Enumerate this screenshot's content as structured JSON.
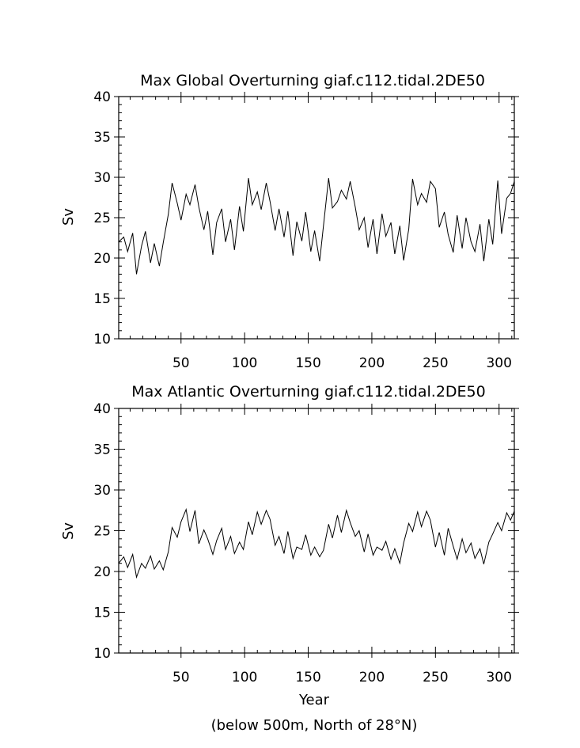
{
  "chart_data": [
    {
      "type": "line",
      "title": "Max Global Overturning giaf.c112.tidal.2DE50",
      "xlabel": "",
      "ylabel": "Sv",
      "xlim": [
        1,
        312
      ],
      "ylim": [
        10,
        40
      ],
      "xticks": [
        50,
        100,
        150,
        200,
        250,
        300
      ],
      "yticks": [
        10,
        15,
        20,
        25,
        30,
        35,
        40
      ],
      "grid": false,
      "x": [
        1,
        5,
        8,
        12,
        15,
        19,
        22,
        26,
        29,
        33,
        36,
        40,
        43,
        47,
        50,
        54,
        57,
        61,
        64,
        68,
        71,
        75,
        78,
        82,
        85,
        89,
        92,
        96,
        99,
        103,
        106,
        110,
        113,
        117,
        120,
        124,
        127,
        131,
        134,
        138,
        141,
        145,
        148,
        152,
        155,
        159,
        162,
        166,
        169,
        173,
        176,
        180,
        183,
        187,
        190,
        194,
        197,
        201,
        204,
        208,
        211,
        215,
        218,
        222,
        225,
        229,
        232,
        236,
        239,
        243,
        246,
        250,
        253,
        257,
        260,
        264,
        267,
        271,
        274,
        278,
        281,
        285,
        288,
        292,
        295,
        299,
        302,
        306,
        309,
        312
      ],
      "y": [
        22.0,
        22.6,
        20.8,
        23.1,
        18.0,
        21.5,
        23.3,
        19.4,
        21.8,
        19.0,
        21.9,
        25.4,
        29.3,
        26.8,
        24.7,
        27.9,
        26.6,
        29.1,
        26.3,
        23.5,
        25.8,
        20.4,
        24.4,
        26.1,
        22.0,
        24.8,
        21.0,
        26.4,
        23.3,
        29.9,
        26.6,
        28.2,
        26.0,
        29.3,
        27.0,
        23.4,
        26.1,
        22.6,
        25.8,
        20.3,
        24.5,
        22.1,
        25.7,
        20.8,
        23.4,
        19.6,
        24.0,
        29.9,
        26.2,
        27.0,
        28.4,
        27.3,
        29.5,
        26.3,
        23.5,
        25.0,
        21.3,
        24.8,
        20.5,
        25.5,
        22.7,
        24.4,
        20.5,
        24.0,
        19.7,
        23.6,
        29.8,
        26.6,
        28.0,
        26.9,
        29.5,
        28.6,
        23.8,
        25.7,
        22.9,
        20.7,
        25.3,
        21.2,
        25.0,
        22.0,
        20.8,
        24.2,
        19.6,
        24.8,
        21.7,
        29.6,
        23.0,
        27.4,
        28.0,
        29.5
      ]
    },
    {
      "type": "line",
      "title": "Max Atlantic Overturning giaf.c112.tidal.2DE50",
      "xlabel": "Year",
      "ylabel": "Sv",
      "xlim": [
        1,
        312
      ],
      "ylim": [
        10,
        40
      ],
      "xticks": [
        50,
        100,
        150,
        200,
        250,
        300
      ],
      "yticks": [
        10,
        15,
        20,
        25,
        30,
        35,
        40
      ],
      "grid": false,
      "x": [
        1,
        5,
        8,
        12,
        15,
        19,
        22,
        26,
        29,
        33,
        36,
        40,
        43,
        47,
        50,
        54,
        57,
        61,
        64,
        68,
        71,
        75,
        78,
        82,
        85,
        89,
        92,
        96,
        99,
        103,
        106,
        110,
        113,
        117,
        120,
        124,
        127,
        131,
        134,
        138,
        141,
        145,
        148,
        152,
        155,
        159,
        162,
        166,
        169,
        173,
        176,
        180,
        183,
        187,
        190,
        194,
        197,
        201,
        204,
        208,
        211,
        215,
        218,
        222,
        225,
        229,
        232,
        236,
        239,
        243,
        246,
        250,
        253,
        257,
        260,
        264,
        267,
        271,
        274,
        278,
        281,
        285,
        288,
        292,
        295,
        299,
        302,
        306,
        309,
        312
      ],
      "y": [
        21.0,
        21.8,
        20.5,
        22.1,
        19.3,
        21.0,
        20.4,
        21.9,
        20.3,
        21.3,
        20.2,
        22.4,
        25.4,
        24.2,
        26.1,
        27.6,
        24.9,
        27.5,
        23.4,
        25.1,
        24.0,
        22.1,
        23.8,
        25.3,
        22.7,
        24.3,
        22.2,
        23.6,
        22.7,
        26.1,
        24.5,
        27.3,
        25.8,
        27.5,
        26.4,
        23.2,
        24.3,
        22.2,
        24.9,
        21.6,
        23.0,
        22.7,
        24.5,
        22.0,
        23.0,
        21.8,
        22.6,
        25.8,
        24.1,
        26.9,
        24.8,
        27.5,
        26.0,
        24.3,
        25.0,
        22.4,
        24.6,
        22.0,
        23.0,
        22.6,
        23.7,
        21.5,
        22.8,
        21.0,
        23.5,
        25.9,
        24.9,
        27.3,
        25.5,
        27.4,
        26.3,
        23.0,
        24.8,
        22.0,
        25.3,
        23.1,
        21.5,
        24.0,
        22.3,
        23.5,
        21.6,
        22.8,
        20.9,
        23.6,
        24.6,
        26.0,
        25.0,
        27.2,
        26.3,
        27.4
      ]
    }
  ],
  "footer": {
    "text": "(below 500m, North of 28°N)"
  }
}
